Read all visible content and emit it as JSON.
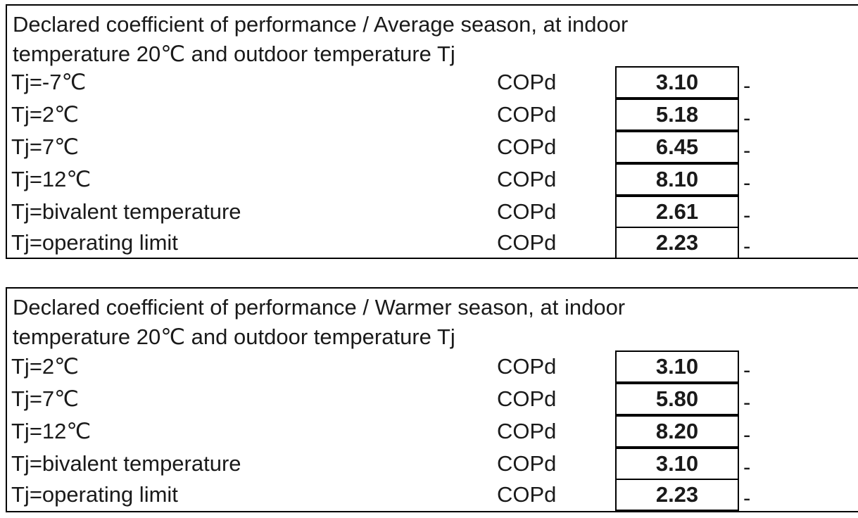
{
  "tables": [
    {
      "heading": "Declared coefficient of performance / Average season, at indoor\ntemperature 20℃ and outdoor temperature Tj",
      "rows": [
        {
          "label": "Tj=-7℃",
          "unit": "COPd",
          "value": "3.10",
          "suffix": "-"
        },
        {
          "label": "Tj=2℃",
          "unit": "COPd",
          "value": "5.18",
          "suffix": "-"
        },
        {
          "label": "Tj=7℃",
          "unit": "COPd",
          "value": "6.45",
          "suffix": "-"
        },
        {
          "label": "Tj=12℃",
          "unit": "COPd",
          "value": "8.10",
          "suffix": "-"
        },
        {
          "label": "Tj=bivalent temperature",
          "unit": "COPd",
          "value": "2.61",
          "suffix": "-"
        },
        {
          "label": "Tj=operating limit",
          "unit": "COPd",
          "value": "2.23",
          "suffix": "-"
        }
      ]
    },
    {
      "heading": "Declared coefficient of performance / Warmer season, at indoor\ntemperature 20℃ and outdoor temperature Tj",
      "rows": [
        {
          "label": "Tj=2℃",
          "unit": "COPd",
          "value": "3.10",
          "suffix": "-"
        },
        {
          "label": "Tj=7℃",
          "unit": "COPd",
          "value": "5.80",
          "suffix": "-"
        },
        {
          "label": "Tj=12℃",
          "unit": "COPd",
          "value": "8.20",
          "suffix": "-"
        },
        {
          "label": "Tj=bivalent temperature",
          "unit": "COPd",
          "value": "3.10",
          "suffix": "-"
        },
        {
          "label": "Tj=operating limit",
          "unit": "COPd",
          "value": "2.23",
          "suffix": "-"
        }
      ]
    }
  ]
}
